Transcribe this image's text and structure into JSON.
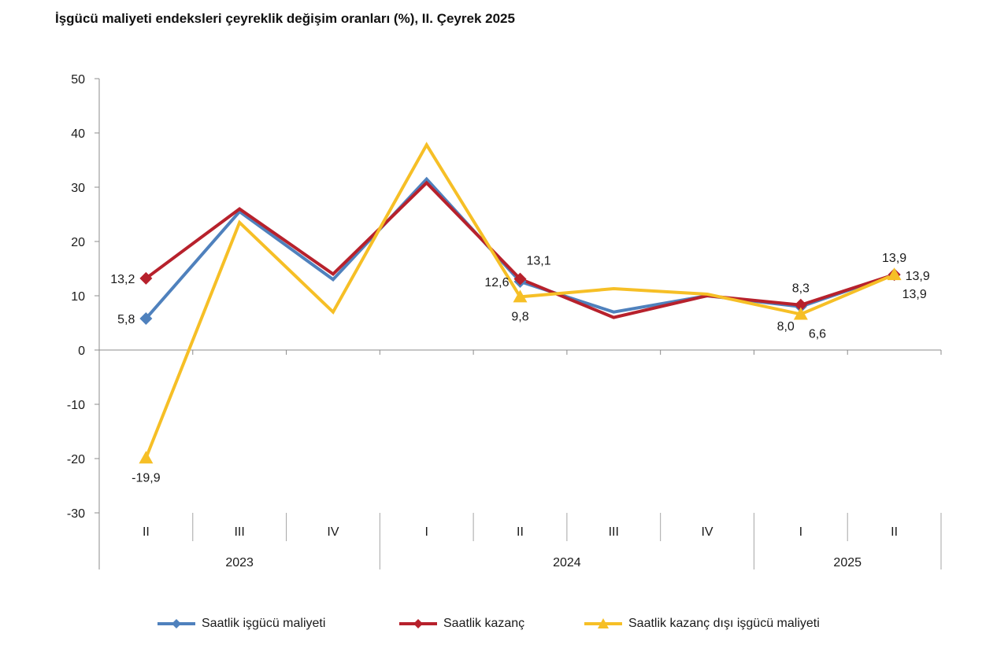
{
  "chart_data": {
    "type": "line",
    "title": "İşgücü maliyeti endeksleri çeyreklik değişim oranları (%), II. Çeyrek 2025",
    "xlabel": "",
    "ylabel": "",
    "ylim": [
      -30,
      50
    ],
    "yticks": [
      50,
      40,
      30,
      20,
      10,
      0,
      -10,
      -20,
      -30
    ],
    "categories": [
      "II",
      "III",
      "IV",
      "I",
      "II",
      "III",
      "IV",
      "I",
      "II"
    ],
    "years": [
      {
        "label": "2023",
        "start": 0,
        "end": 2
      },
      {
        "label": "2024",
        "start": 3,
        "end": 6
      },
      {
        "label": "2025",
        "start": 7,
        "end": 8
      }
    ],
    "grid": false,
    "legend": "bottom",
    "series": [
      {
        "name": "Saatlik işgücü maliyeti",
        "color": "#4f81bd",
        "marker": "diamond",
        "values": [
          5.8,
          25.5,
          13.0,
          31.5,
          12.6,
          7.0,
          10.0,
          8.0,
          13.9
        ]
      },
      {
        "name": "Saatlik kazanç",
        "color": "#b7212c",
        "marker": "diamond",
        "values": [
          13.2,
          26.0,
          14.0,
          30.8,
          13.1,
          6.0,
          10.0,
          8.3,
          13.9
        ]
      },
      {
        "name": "Saatlik kazanç dışı işgücü maliyeti",
        "color": "#f6bf26",
        "marker": "triangle",
        "values": [
          -19.9,
          23.5,
          7.0,
          37.8,
          9.8,
          11.3,
          10.3,
          6.6,
          13.9
        ]
      }
    ],
    "labels": [
      {
        "text": "13,2",
        "series": 1,
        "index": 0,
        "pos": "left"
      },
      {
        "text": "5,8",
        "series": 0,
        "index": 0,
        "pos": "left"
      },
      {
        "text": "-19,9",
        "series": 2,
        "index": 0,
        "pos": "below"
      },
      {
        "text": "13,1",
        "series": 1,
        "index": 4,
        "pos": "above-right"
      },
      {
        "text": "12,6",
        "series": 0,
        "index": 4,
        "pos": "left"
      },
      {
        "text": "9,8",
        "series": 2,
        "index": 4,
        "pos": "below"
      },
      {
        "text": "8,3",
        "series": 1,
        "index": 7,
        "pos": "above"
      },
      {
        "text": "8,0",
        "series": 0,
        "index": 7,
        "pos": "below-left"
      },
      {
        "text": "6,6",
        "series": 2,
        "index": 7,
        "pos": "below-right"
      },
      {
        "text": "13,9",
        "series": 1,
        "index": 8,
        "pos": "above"
      },
      {
        "text": "13,9",
        "series": 0,
        "index": 8,
        "pos": "right"
      },
      {
        "text": "13,9",
        "series": 2,
        "index": 8,
        "pos": "below-right"
      }
    ]
  }
}
